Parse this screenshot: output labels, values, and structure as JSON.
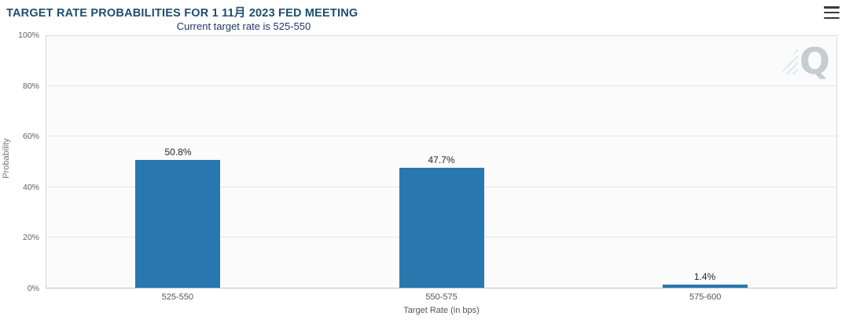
{
  "header": {
    "title": "TARGET RATE PROBABILITIES FOR 1 11月 2023 FED MEETING",
    "menu_icon": "hamburger-menu"
  },
  "watermark": {
    "letter": "Q"
  },
  "chart_data": {
    "type": "bar",
    "title": "Current target rate is 525-550",
    "categories": [
      "525-550",
      "550-575",
      "575-600"
    ],
    "values": [
      50.8,
      47.7,
      1.4
    ],
    "value_labels": [
      "50.8%",
      "47.7%",
      "1.4%"
    ],
    "xlabel": "Target Rate (in bps)",
    "ylabel": "Probability",
    "ylim": [
      0,
      100
    ],
    "yticks": [
      0,
      20,
      40,
      60,
      80,
      100
    ],
    "ytick_labels": [
      "0%",
      "20%",
      "40%",
      "60%",
      "80%",
      "100%"
    ],
    "bar_color": "#2878af",
    "grid": true,
    "legend": "none"
  }
}
